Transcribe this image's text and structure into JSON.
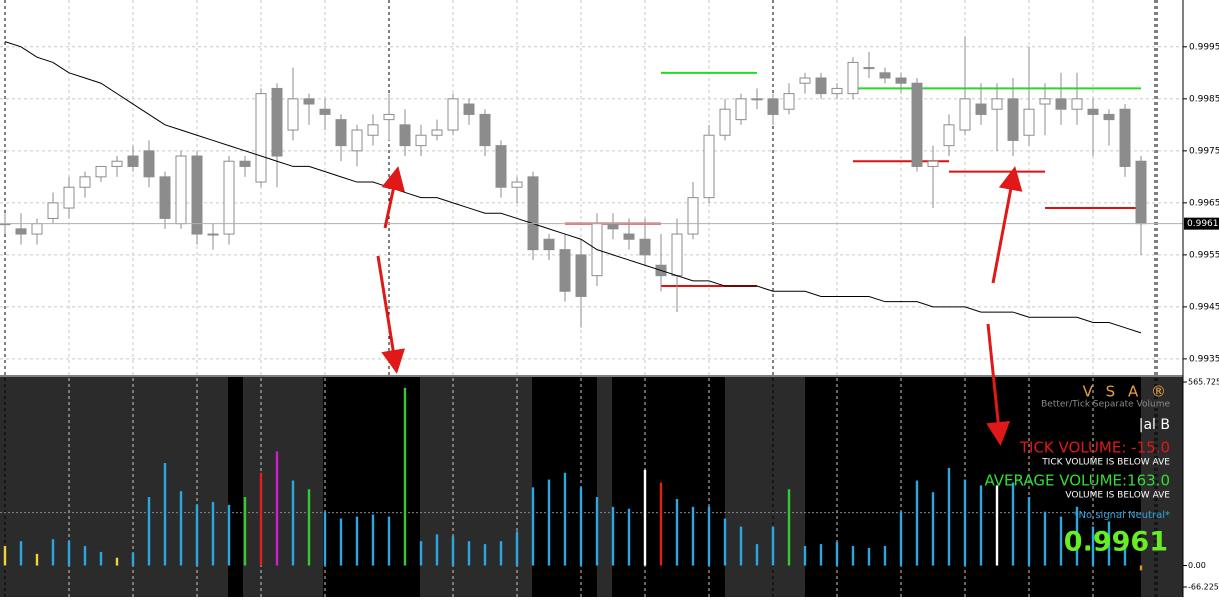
{
  "chart_data": [
    {
      "type": "candlestick",
      "open": [
        0.9961,
        0.996,
        0.9959,
        0.9962,
        0.9964,
        0.9968,
        0.997,
        0.9972,
        0.9974,
        0.9975,
        0.997,
        0.9961,
        0.9974,
        0.9959,
        0.9959,
        0.9973,
        0.9969,
        0.9987,
        0.9979,
        0.9985,
        0.9983,
        0.9981,
        0.9975,
        0.9978,
        0.9981,
        0.998,
        0.9976,
        0.9978,
        0.9979,
        0.9984,
        0.9982,
        0.9976,
        0.9968,
        0.997,
        0.9958,
        0.9956,
        0.9955,
        0.9951,
        0.9961,
        0.9959,
        0.9958,
        0.9953,
        0.9951,
        0.9959,
        0.9966,
        0.9978,
        0.9981,
        0.9985,
        0.9985,
        0.9983,
        0.9988,
        0.9989,
        0.9986,
        0.9986,
        0.9991,
        0.999,
        0.9989,
        0.9988,
        0.9972,
        0.9976,
        0.9979,
        0.9984,
        0.9983,
        0.9985,
        0.9978,
        0.9984,
        0.9985,
        0.9983,
        0.9983,
        0.9982,
        0.9983,
        0.9973
      ],
      "high": [
        0.9963,
        0.9963,
        0.9962,
        0.9967,
        0.997,
        0.9971,
        0.9972,
        0.9974,
        0.9976,
        0.9977,
        0.9971,
        0.9975,
        0.9975,
        0.9961,
        0.9974,
        0.9974,
        0.9987,
        0.9988,
        0.9991,
        0.9986,
        0.9985,
        0.9982,
        0.998,
        0.9982,
        0.9986,
        0.9983,
        0.998,
        0.9981,
        0.9986,
        0.9985,
        0.9983,
        0.9977,
        0.997,
        0.9971,
        0.9959,
        0.9959,
        0.9958,
        0.9963,
        0.9963,
        0.9962,
        0.9962,
        0.9959,
        0.9962,
        0.9969,
        0.998,
        0.9985,
        0.9986,
        0.9987,
        0.9986,
        0.9988,
        0.999,
        0.999,
        0.9988,
        0.9993,
        0.9994,
        0.9991,
        0.999,
        0.9989,
        0.9976,
        0.9982,
        0.9997,
        0.9988,
        0.9988,
        0.9989,
        0.9995,
        0.9988,
        0.999,
        0.999,
        0.9985,
        0.9983,
        0.9984,
        0.9974
      ],
      "low": [
        0.9959,
        0.9957,
        0.9957,
        0.9961,
        0.9962,
        0.9966,
        0.9969,
        0.997,
        0.9971,
        0.9968,
        0.996,
        0.996,
        0.9957,
        0.9956,
        0.9957,
        0.997,
        0.9968,
        0.9968,
        0.9977,
        0.998,
        0.9979,
        0.9973,
        0.9972,
        0.9976,
        0.9977,
        0.9974,
        0.9974,
        0.9977,
        0.9978,
        0.998,
        0.9974,
        0.9966,
        0.9965,
        0.9954,
        0.9954,
        0.9946,
        0.9941,
        0.9949,
        0.9958,
        0.9956,
        0.9953,
        0.9948,
        0.9944,
        0.9958,
        0.9965,
        0.9977,
        0.998,
        0.9983,
        0.998,
        0.9982,
        0.9986,
        0.9985,
        0.9985,
        0.9985,
        0.9989,
        0.9988,
        0.9986,
        0.9971,
        0.9964,
        0.9974,
        0.9978,
        0.998,
        0.9975,
        0.9974,
        0.9976,
        0.9978,
        0.998,
        0.998,
        0.9974,
        0.9976,
        0.997,
        0.9955
      ],
      "close": [
        0.9961,
        0.9959,
        0.9961,
        0.9965,
        0.9968,
        0.997,
        0.9972,
        0.9973,
        0.9972,
        0.997,
        0.9962,
        0.9974,
        0.9959,
        0.9959,
        0.9973,
        0.9972,
        0.9986,
        0.9974,
        0.9985,
        0.9984,
        0.9982,
        0.9976,
        0.9979,
        0.998,
        0.9982,
        0.9976,
        0.9978,
        0.9979,
        0.9985,
        0.9982,
        0.9976,
        0.9968,
        0.9969,
        0.9956,
        0.9956,
        0.9948,
        0.9947,
        0.9961,
        0.996,
        0.9958,
        0.9955,
        0.9951,
        0.9959,
        0.9966,
        0.9978,
        0.9983,
        0.9985,
        0.9985,
        0.9982,
        0.9986,
        0.9989,
        0.9986,
        0.9987,
        0.9992,
        0.9991,
        0.9989,
        0.9988,
        0.9972,
        0.9973,
        0.998,
        0.9985,
        0.9982,
        0.9985,
        0.9977,
        0.9983,
        0.9985,
        0.9983,
        0.9985,
        0.9982,
        0.9981,
        0.9972,
        0.9961
      ],
      "up_color": "#ffffff",
      "down_color": "#8c8c8c",
      "edge_color": "#8c8c8c",
      "moving_average": {
        "color": "#000000",
        "values": [
          0.9996,
          0.9995,
          0.9993,
          0.9992,
          0.999,
          0.9989,
          0.9988,
          0.9986,
          0.9984,
          0.9982,
          0.998,
          0.9979,
          0.9978,
          0.9977,
          0.9976,
          0.9975,
          0.9974,
          0.9973,
          0.9972,
          0.9972,
          0.9971,
          0.997,
          0.9969,
          0.9969,
          0.9968,
          0.9967,
          0.9966,
          0.9966,
          0.9965,
          0.9964,
          0.9963,
          0.9963,
          0.9962,
          0.9961,
          0.996,
          0.9959,
          0.9958,
          0.9956,
          0.9955,
          0.9954,
          0.9953,
          0.9952,
          0.9951,
          0.995,
          0.995,
          0.9949,
          0.9949,
          0.9949,
          0.9948,
          0.9948,
          0.9948,
          0.9947,
          0.9947,
          0.9947,
          0.9947,
          0.9946,
          0.9946,
          0.9946,
          0.9945,
          0.9945,
          0.9945,
          0.9944,
          0.9944,
          0.9944,
          0.9943,
          0.9943,
          0.9943,
          0.9943,
          0.9942,
          0.9942,
          0.9941,
          0.994
        ]
      },
      "levels": [
        {
          "value": 0.999,
          "from": 41,
          "to": 47,
          "color": "#22dd22"
        },
        {
          "value": 0.9987,
          "from": 53,
          "to": 71,
          "color": "#22dd22"
        },
        {
          "value": 0.9961,
          "from": 35,
          "to": 41,
          "color": "#dd1111"
        },
        {
          "value": 0.9949,
          "from": 41,
          "to": 47,
          "color": "#dd1111"
        },
        {
          "value": 0.9973,
          "from": 53,
          "to": 59,
          "color": "#dd1111"
        },
        {
          "value": 0.9971,
          "from": 59,
          "to": 65,
          "color": "#dd1111"
        },
        {
          "value": 0.9964,
          "from": 65,
          "to": 71,
          "color": "#dd1111"
        }
      ],
      "current_price": 0.9961,
      "ylim": [
        0.99319,
        1.0004
      ],
      "yticks": [
        0.9995,
        0.9985,
        0.9975,
        0.9965,
        0.9955,
        0.9945,
        0.9935
      ],
      "grid": true
    },
    {
      "type": "bar",
      "title": "V S A ®",
      "subtitle": "Better/Tick Separate Volume",
      "values": [
        60,
        75,
        36,
        81,
        75,
        60,
        42,
        24,
        39,
        211,
        316,
        229,
        187,
        196,
        187,
        211,
        286,
        352,
        262,
        235,
        166,
        145,
        151,
        157,
        151,
        548,
        75,
        96,
        90,
        75,
        66,
        75,
        105,
        241,
        265,
        286,
        241,
        211,
        181,
        175,
        295,
        256,
        205,
        181,
        181,
        145,
        120,
        66,
        120,
        235,
        60,
        66,
        72,
        60,
        54,
        60,
        166,
        262,
        226,
        301,
        265,
        247,
        247,
        256,
        211,
        166,
        151,
        181,
        120,
        136,
        90,
        -15
      ],
      "colors": [
        "#f2d33a",
        "#2ca8e0",
        "#f2d33a",
        "#2ca8e0",
        "#2ca8e0",
        "#2ca8e0",
        "#2ca8e0",
        "#f2d33a",
        "#2ca8e0",
        "#2ca8e0",
        "#2ca8e0",
        "#2ca8e0",
        "#2ca8e0",
        "#2ca8e0",
        "#2ca8e0",
        "#33cc33",
        "#dd2222",
        "#cc22cc",
        "#2ca8e0",
        "#33cc33",
        "#2ca8e0",
        "#2ca8e0",
        "#2ca8e0",
        "#2ca8e0",
        "#2ca8e0",
        "#33cc33",
        "#2ca8e0",
        "#2ca8e0",
        "#2ca8e0",
        "#2ca8e0",
        "#2ca8e0",
        "#2ca8e0",
        "#2ca8e0",
        "#2ca8e0",
        "#2ca8e0",
        "#2ca8e0",
        "#2ca8e0",
        "#2ca8e0",
        "#2ca8e0",
        "#2ca8e0",
        "#ffffff",
        "#dd2222",
        "#2ca8e0",
        "#2ca8e0",
        "#2ca8e0",
        "#2ca8e0",
        "#2ca8e0",
        "#2ca8e0",
        "#2ca8e0",
        "#33cc33",
        "#2ca8e0",
        "#2ca8e0",
        "#2ca8e0",
        "#2ca8e0",
        "#2ca8e0",
        "#2ca8e0",
        "#2ca8e0",
        "#2ca8e0",
        "#2ca8e0",
        "#2ca8e0",
        "#2ca8e0",
        "#2ca8e0",
        "#ffffff",
        "#2ca8e0",
        "#2ca8e0",
        "#2ca8e0",
        "#2ca8e0",
        "#2ca8e0",
        "#2ca8e0",
        "#2ca8e0",
        "#2ca8e0",
        "#f08c1e"
      ],
      "average_line": 163,
      "annotations": [
        {
          "text": "|al B",
          "color": "#ffffff"
        },
        {
          "text": "TICK VOLUME: -15.0",
          "color": "#e01818"
        },
        {
          "text": "TICK VOLUME IS BELOW AVE",
          "color": "#ffffff"
        },
        {
          "text": "AVERAGE VOLUME:163.0",
          "color": "#33dd33"
        },
        {
          "text": "VOLUME IS BELOW AVE",
          "color": "#ffffff"
        },
        {
          "text": "*No signal Neutral*",
          "color": "#2ca8e0"
        }
      ],
      "ylim": [
        -66.225,
        565.725
      ],
      "yticks": [
        565.725,
        {
          "value": 0,
          "label": "0.00"
        },
        -66.225
      ]
    }
  ]
}
